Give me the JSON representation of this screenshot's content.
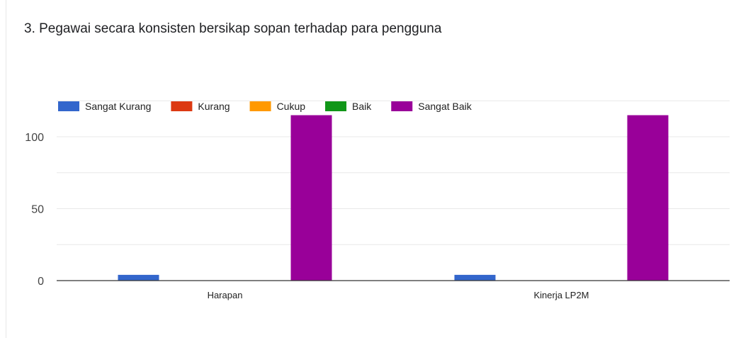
{
  "question": {
    "title": "3. Pegawai secara konsisten bersikap sopan terhadap para pengguna"
  },
  "chart_data": {
    "type": "bar",
    "title": "3. Pegawai secara konsisten bersikap sopan terhadap para pengguna",
    "categories": [
      "Harapan",
      "Kinerja LP2M"
    ],
    "series": [
      {
        "name": "Sangat Kurang",
        "color": "#3366cc",
        "values": [
          4,
          4
        ]
      },
      {
        "name": "Kurang",
        "color": "#dc3912",
        "values": [
          0,
          0
        ]
      },
      {
        "name": "Cukup",
        "color": "#ff9900",
        "values": [
          0,
          0
        ]
      },
      {
        "name": "Baik",
        "color": "#109618",
        "values": [
          0,
          0
        ]
      },
      {
        "name": "Sangat Baik",
        "color": "#990099",
        "values": [
          115,
          115
        ]
      }
    ],
    "ylim": [
      0,
      125
    ],
    "yticks": [
      "0",
      "50",
      "100"
    ],
    "ytick_values": [
      0,
      50,
      100
    ],
    "grid": true,
    "legend_position": "top-left",
    "xlabel": "",
    "ylabel": ""
  }
}
